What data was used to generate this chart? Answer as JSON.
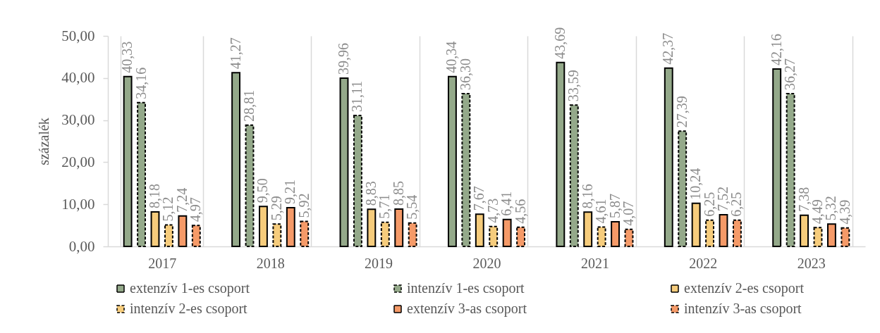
{
  "chart_data": {
    "type": "bar",
    "categories": [
      "2017",
      "2018",
      "2019",
      "2020",
      "2021",
      "2022",
      "2023"
    ],
    "ylabel": "százalék",
    "ylim": [
      0,
      50
    ],
    "yticks": [
      {
        "value": 0,
        "label": "0,00"
      },
      {
        "value": 10,
        "label": "10,00"
      },
      {
        "value": 20,
        "label": "20,00"
      },
      {
        "value": 30,
        "label": "30,00"
      },
      {
        "value": 40,
        "label": "40,00"
      },
      {
        "value": 50,
        "label": "50,00"
      }
    ],
    "grid": "x",
    "legend": "bottom",
    "series": [
      {
        "name": "extenzív 1-es csoport",
        "color": "#94a98a",
        "line_style": "solid",
        "values": [
          40.33,
          41.27,
          39.96,
          40.34,
          43.69,
          42.37,
          42.16
        ],
        "value_labels": [
          "40,33",
          "41,27",
          "39,96",
          "40,34",
          "43,69",
          "42,37",
          "42,16"
        ]
      },
      {
        "name": "intenzív 1-es csoport",
        "color": "#94a98a",
        "line_style": "dashed",
        "values": [
          34.16,
          28.81,
          31.11,
          36.3,
          33.59,
          27.39,
          36.27
        ],
        "value_labels": [
          "34,16",
          "28,81",
          "31,11",
          "36,30",
          "33,59",
          "27,39",
          "36,27"
        ]
      },
      {
        "name": "extenzív 2-es csoport",
        "color": "#f6cc7c",
        "line_style": "solid",
        "values": [
          8.18,
          9.5,
          8.83,
          7.67,
          8.16,
          10.24,
          7.38
        ],
        "value_labels": [
          "8,18",
          "9,50",
          "8,83",
          "7,67",
          "8,16",
          "10,24",
          "7,38"
        ]
      },
      {
        "name": "intenzív 2-es csoport",
        "color": "#f6cc7c",
        "line_style": "dashed",
        "values": [
          5.12,
          5.29,
          5.71,
          4.73,
          4.61,
          6.25,
          4.49
        ],
        "value_labels": [
          "5,12",
          "5,29",
          "5,71",
          "4,73",
          "4,61",
          "6,25",
          "4,49"
        ]
      },
      {
        "name": "extenzív 3-as csoport",
        "color": "#f59a68",
        "line_style": "solid",
        "values": [
          7.24,
          9.21,
          8.85,
          6.41,
          5.87,
          7.52,
          5.32
        ],
        "value_labels": [
          "7,24",
          "9,21",
          "8,85",
          "6,41",
          "5,87",
          "7,52",
          "5,32"
        ]
      },
      {
        "name": "intenzív 3-as csoport",
        "color": "#f59a68",
        "line_style": "dashed",
        "values": [
          4.97,
          5.92,
          5.54,
          4.56,
          4.07,
          6.25,
          4.39
        ],
        "value_labels": [
          "4,97",
          "5,92",
          "5,54",
          "4,56",
          "4,07",
          "6,25",
          "4,39"
        ]
      }
    ]
  }
}
